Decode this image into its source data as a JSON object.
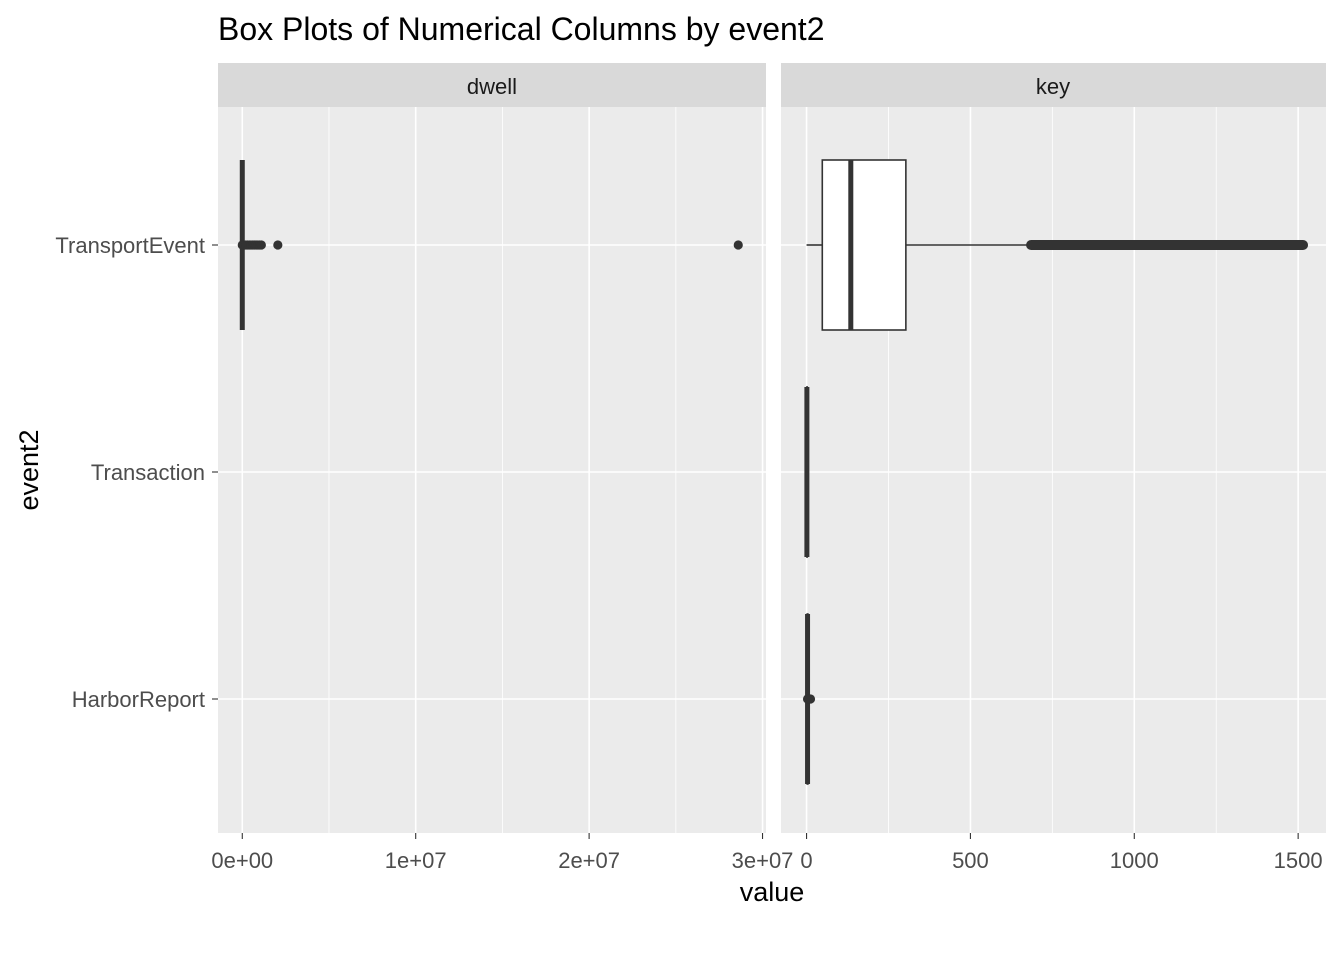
{
  "chart_data": {
    "type": "boxplot",
    "title": "Box Plots of Numerical Columns by event2",
    "xlabel": "value",
    "ylabel": "event2",
    "categories": [
      "TransportEvent",
      "Transaction",
      "HarborReport"
    ],
    "grid": true,
    "panels": [
      {
        "name": "dwell",
        "xlim": [
          -1400000,
          30200000
        ],
        "x_ticks": [
          0,
          10000000,
          20000000,
          30000000
        ],
        "x_tick_labels": [
          "0e+00",
          "1e+07",
          "2e+07",
          "3e+07"
        ],
        "boxes": [
          {
            "category": "TransportEvent",
            "whisker_low": 0,
            "q1": 0,
            "median": 0,
            "q3": 0,
            "whisker_high": 0,
            "outliers": [
              0,
              100000,
              200000,
              300000,
              400000,
              500000,
              600000,
              700000,
              800000,
              900000,
              1000000,
              1100000,
              2050000,
              28600000
            ]
          }
        ]
      },
      {
        "name": "key",
        "xlim": [
          -78,
          1585
        ],
        "x_ticks": [
          0,
          500,
          1000,
          1500
        ],
        "x_tick_labels": [
          "0",
          "500",
          "1000",
          "1500"
        ],
        "boxes": [
          {
            "category": "TransportEvent",
            "whisker_low": 0,
            "q1": 48,
            "median": 135,
            "q3": 303,
            "whisker_high": 685,
            "outliers_range": [
              685,
              1515
            ]
          },
          {
            "category": "Transaction",
            "whisker_low": 0,
            "q1": 1,
            "median": 1,
            "q3": 2,
            "whisker_high": 3,
            "outliers": []
          },
          {
            "category": "HarborReport",
            "whisker_low": 1,
            "q1": 2,
            "median": 3,
            "q3": 4,
            "whisker_high": 6,
            "outliers": [
              3,
              6,
              9,
              12
            ]
          }
        ]
      }
    ]
  }
}
